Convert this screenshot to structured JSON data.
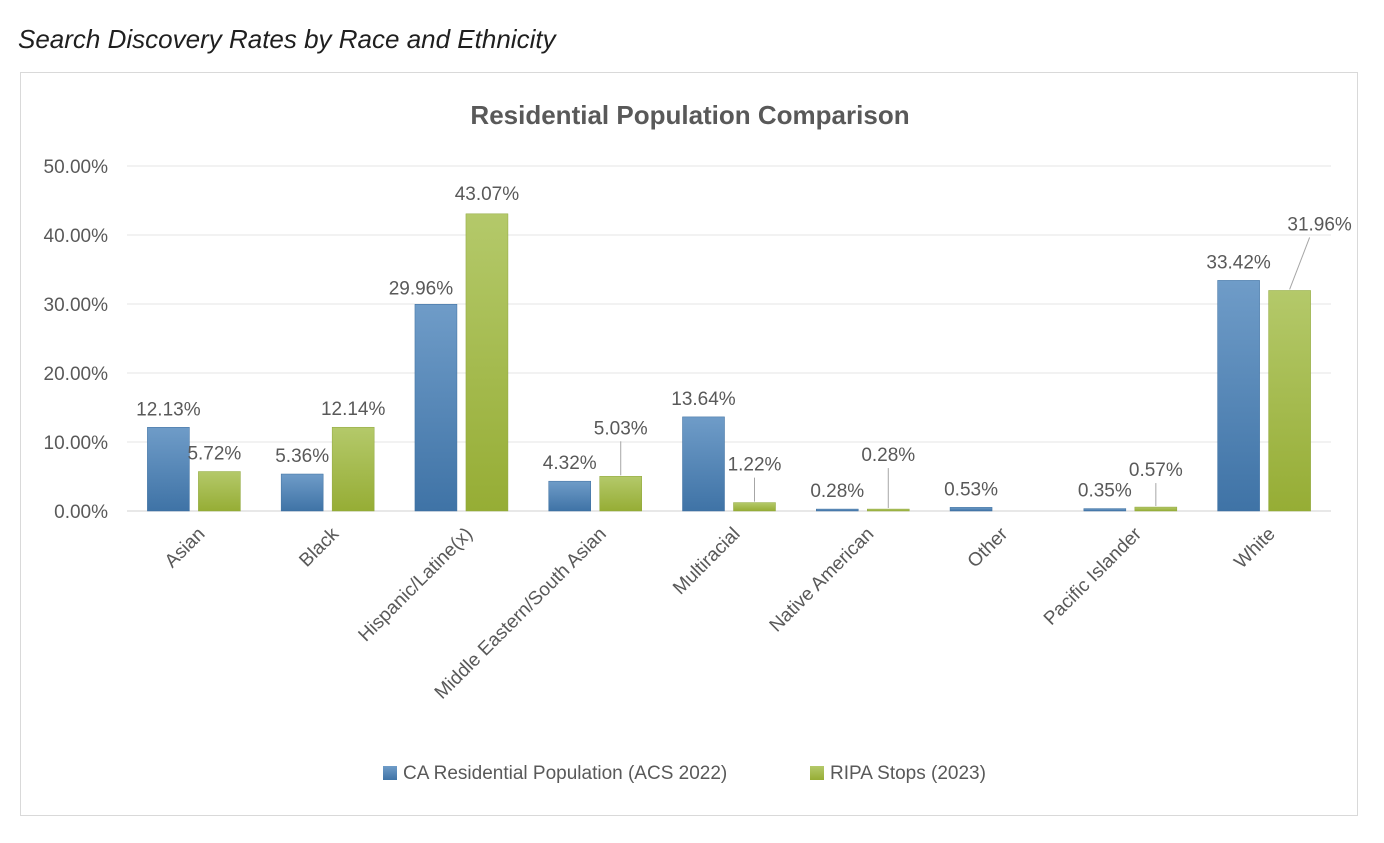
{
  "page": {
    "caption": "Search Discovery Rates by Race and Ethnicity"
  },
  "chart_data": {
    "type": "bar",
    "title": "Residential Population Comparison",
    "xlabel": "",
    "ylabel": "",
    "ylim": [
      0,
      0.5
    ],
    "y_ticks": [
      0,
      0.1,
      0.2,
      0.3,
      0.4,
      0.5
    ],
    "y_tick_labels": [
      "0.00%",
      "10.00%",
      "20.00%",
      "30.00%",
      "40.00%",
      "50.00%"
    ],
    "grid": true,
    "legend_position": "bottom",
    "categories": [
      "Asian",
      "Black",
      "Hispanic/Latine(x)",
      "Middle Eastern/South Asian",
      "Multiracial",
      "Native American",
      "Other",
      "Pacific Islander",
      "White"
    ],
    "series": [
      {
        "name": "CA Residential Population (ACS 2022)",
        "color": "#4f81bd",
        "values": [
          0.1213,
          0.0536,
          0.2996,
          0.0432,
          0.1364,
          0.0028,
          0.0053,
          0.0035,
          0.3342
        ],
        "labels": [
          "12.13%",
          "5.36%",
          "29.96%",
          "4.32%",
          "13.64%",
          "0.28%",
          "0.53%",
          "0.35%",
          "33.42%"
        ]
      },
      {
        "name": "RIPA Stops (2023)",
        "color": "#9bbb59",
        "values": [
          0.0572,
          0.1214,
          0.4307,
          0.0503,
          0.0122,
          0.0028,
          null,
          0.0057,
          0.3196
        ],
        "labels": [
          "5.72%",
          "12.14%",
          "43.07%",
          "5.03%",
          "1.22%",
          "0.28%",
          null,
          "0.57%",
          "31.96%"
        ]
      }
    ]
  }
}
